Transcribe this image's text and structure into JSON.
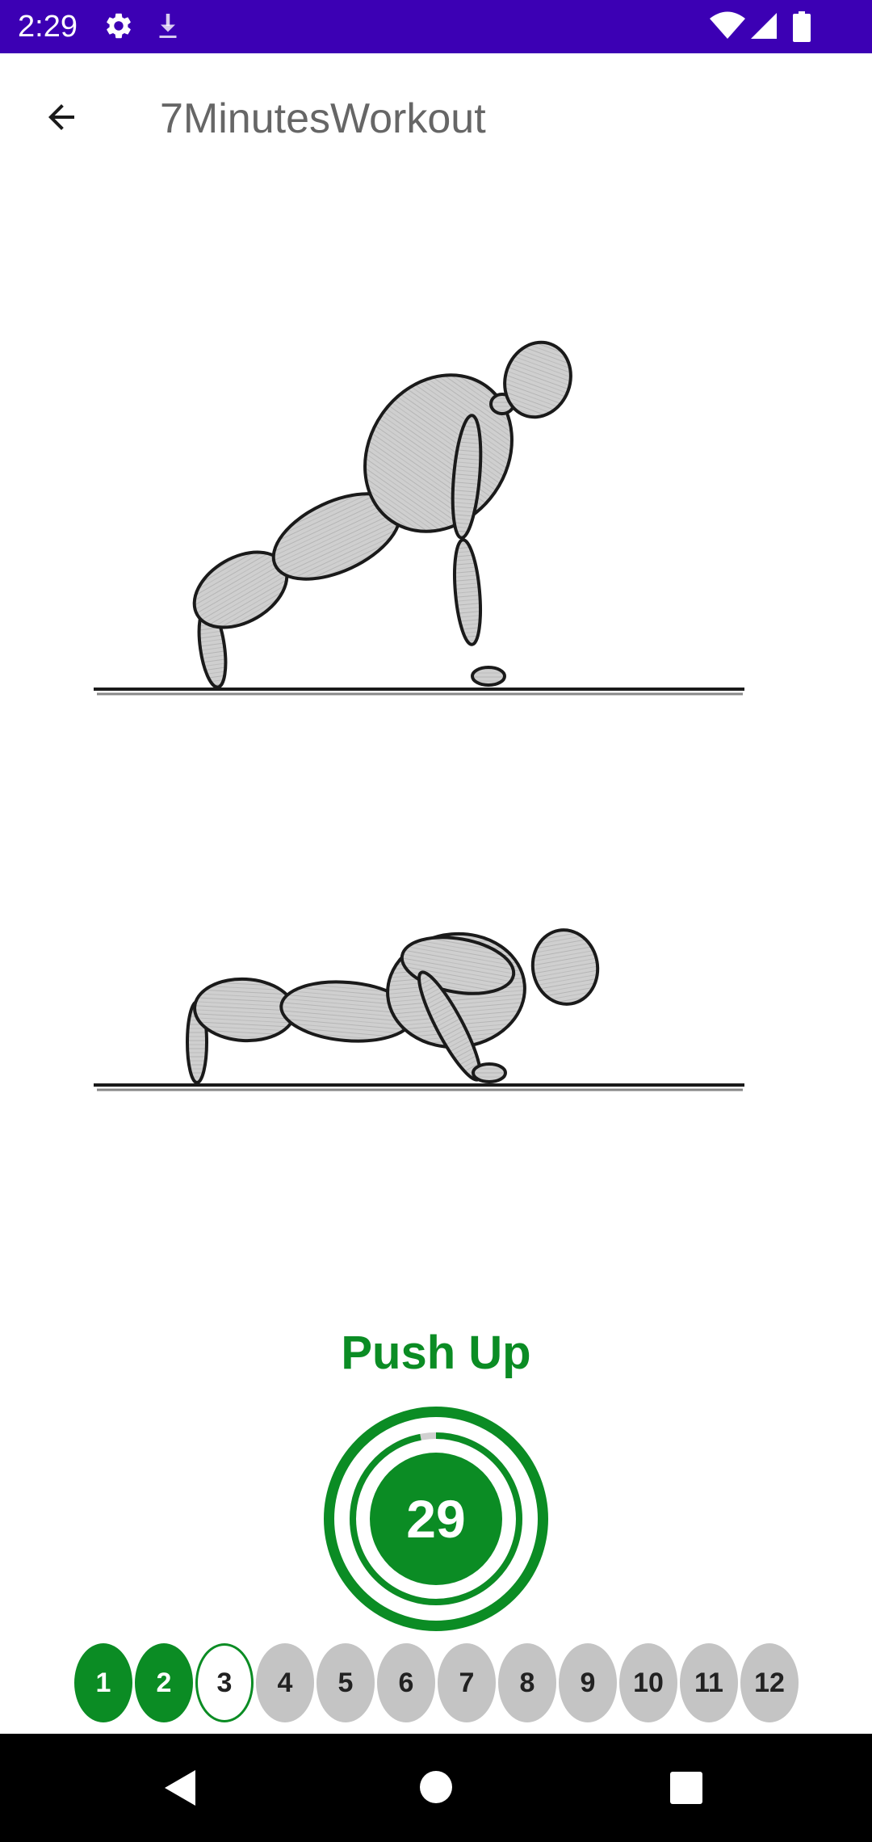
{
  "status_bar": {
    "time": "2:29",
    "left_icons": [
      "gear-icon",
      "download-icon"
    ],
    "right_icons": [
      "wifi-icon",
      "cell-signal-icon",
      "battery-icon"
    ],
    "background": "#3c00b4"
  },
  "app_bar": {
    "back_icon": "arrow-back-icon",
    "title": "7MinutesWorkout"
  },
  "exercise": {
    "name": "Push Up",
    "timer_value": "29",
    "timer_progress": 0.97
  },
  "steps": [
    {
      "label": "1",
      "state": "done"
    },
    {
      "label": "2",
      "state": "done"
    },
    {
      "label": "3",
      "state": "current"
    },
    {
      "label": "4",
      "state": "pending"
    },
    {
      "label": "5",
      "state": "pending"
    },
    {
      "label": "6",
      "state": "pending"
    },
    {
      "label": "7",
      "state": "pending"
    },
    {
      "label": "8",
      "state": "pending"
    },
    {
      "label": "9",
      "state": "pending"
    },
    {
      "label": "10",
      "state": "pending"
    },
    {
      "label": "11",
      "state": "pending"
    },
    {
      "label": "12",
      "state": "pending"
    }
  ],
  "nav_bar": {
    "icons": [
      "back-triangle-icon",
      "home-circle-icon",
      "recents-square-icon"
    ]
  },
  "colors": {
    "accent": "#0b8c24",
    "pending": "#c4c4c4",
    "status_bar": "#3c00b4"
  }
}
